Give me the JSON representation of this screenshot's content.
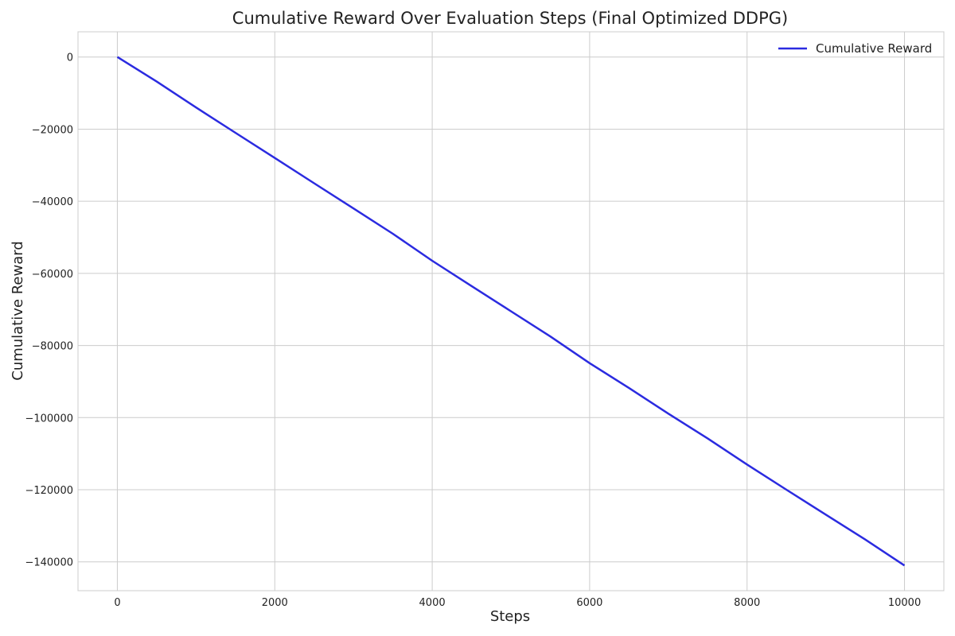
{
  "chart_data": {
    "type": "line",
    "title": "Cumulative Reward Over Evaluation Steps (Final Optimized DDPG)",
    "xlabel": "Steps",
    "ylabel": "Cumulative Reward",
    "xlim": [
      -500,
      10500
    ],
    "ylim": [
      -148000,
      7000
    ],
    "xticks": [
      0,
      2000,
      4000,
      6000,
      8000,
      10000
    ],
    "yticks": [
      0,
      -20000,
      -40000,
      -60000,
      -80000,
      -100000,
      -120000,
      -140000
    ],
    "xtick_labels": [
      "0",
      "2000",
      "4000",
      "6000",
      "8000",
      "10000"
    ],
    "ytick_labels": [
      "0",
      "−20000",
      "−40000",
      "−60000",
      "−80000",
      "−100000",
      "−120000",
      "−140000"
    ],
    "grid": true,
    "legend": "top-right",
    "series": [
      {
        "name": "Cumulative Reward",
        "color": "#2b2be0",
        "x": [
          0,
          500,
          1000,
          1500,
          2000,
          2500,
          3000,
          3500,
          4000,
          4500,
          5000,
          5500,
          6000,
          6500,
          7000,
          7500,
          8000,
          8500,
          9000,
          9500,
          10000
        ],
        "y": [
          0,
          -6800,
          -14000,
          -21000,
          -28000,
          -35000,
          -42000,
          -49000,
          -56500,
          -63500,
          -70500,
          -77500,
          -84900,
          -91800,
          -98900,
          -105800,
          -113000,
          -120000,
          -126900,
          -133800,
          -141000
        ]
      }
    ]
  }
}
